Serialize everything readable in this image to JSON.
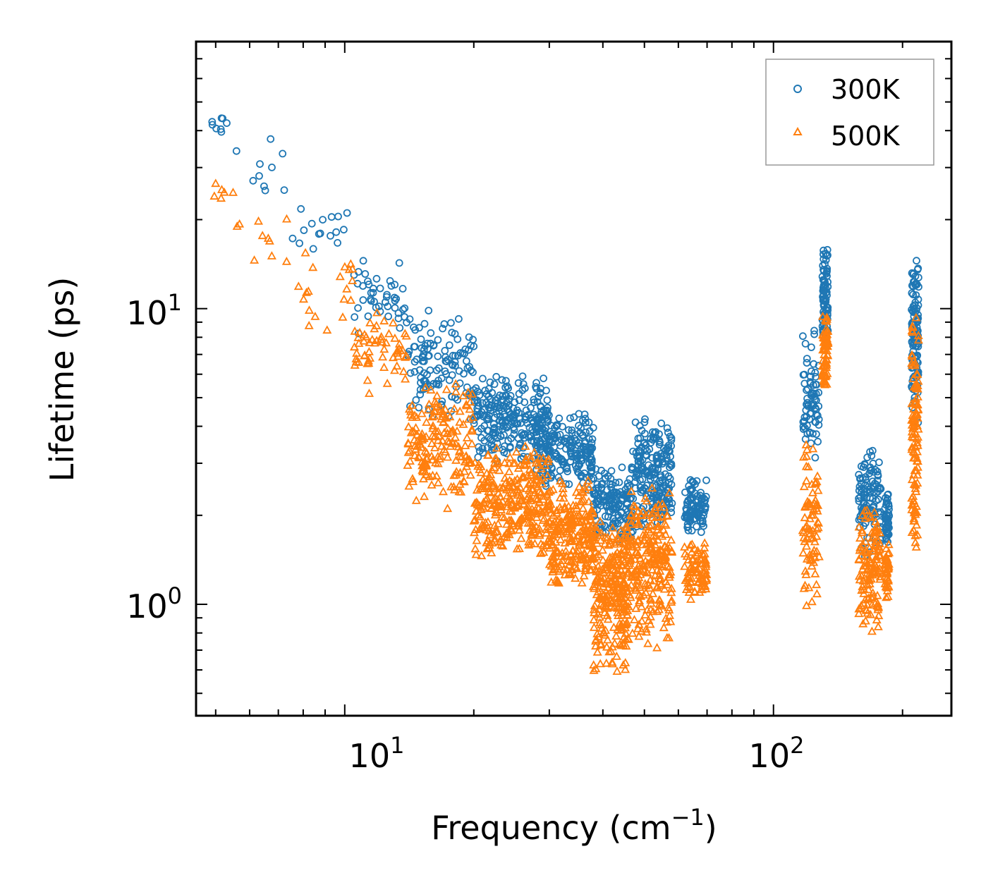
{
  "chart_data": {
    "type": "scatter",
    "title": "",
    "xlabel": "Frequency (cm",
    "xlabel_sup": "−1",
    "xlabel_suffix": ")",
    "ylabel": "Lifetime (ps)",
    "xscale": "log",
    "yscale": "log",
    "xlim": [
      4.5,
      260
    ],
    "ylim": [
      0.42,
      80
    ],
    "x_ticks": [
      {
        "value": 10,
        "base": "10",
        "exp": "1"
      },
      {
        "value": 100,
        "base": "10",
        "exp": "2"
      }
    ],
    "y_ticks": [
      {
        "value": 1,
        "base": "10",
        "exp": "0"
      },
      {
        "value": 10,
        "base": "10",
        "exp": "1"
      }
    ],
    "legend": {
      "position": "top-right",
      "entries": [
        "300K",
        "500K"
      ]
    },
    "colors": {
      "300K": "#1f77b4",
      "500K": "#ff7f0e"
    },
    "markers": {
      "300K": "circle",
      "500K": "triangle"
    },
    "series": [
      {
        "name": "300K",
        "clusters": [
          {
            "x": [
              4.9,
              5.5
            ],
            "y": [
              38,
              45
            ],
            "n": 8
          },
          {
            "x": [
              5.5,
              7.5
            ],
            "y": [
              22,
              40
            ],
            "n": 10
          },
          {
            "x": [
              7.5,
              10.5
            ],
            "y": [
              13,
              28
            ],
            "n": 16
          },
          {
            "x": [
              10.5,
              14
            ],
            "y": [
              8,
              15
            ],
            "n": 45
          },
          {
            "x": [
              14,
              20
            ],
            "y": [
              4,
              10
            ],
            "n": 120
          },
          {
            "x": [
              20,
              30
            ],
            "y": [
              3,
              6
            ],
            "n": 250
          },
          {
            "x": [
              28,
              38
            ],
            "y": [
              2.4,
              4.5
            ],
            "n": 200
          },
          {
            "x": [
              38,
              47
            ],
            "y": [
              1.6,
              3.0
            ],
            "n": 160
          },
          {
            "x": [
              47,
              58
            ],
            "y": [
              1.7,
              4.3
            ],
            "n": 200
          },
          {
            "x": [
              62,
              70
            ],
            "y": [
              1.7,
              2.7
            ],
            "n": 90
          },
          {
            "x": [
              117,
              128
            ],
            "y": [
              3.0,
              8.8
            ],
            "n": 70
          },
          {
            "x": [
              130,
              134
            ],
            "y": [
              7.5,
              16.5
            ],
            "n": 80
          },
          {
            "x": [
              158,
              178
            ],
            "y": [
              1.4,
              3.7
            ],
            "n": 110
          },
          {
            "x": [
              182,
              186
            ],
            "y": [
              1.6,
              2.5
            ],
            "n": 40
          },
          {
            "x": [
              210,
              218
            ],
            "y": [
              4.0,
              16.5
            ],
            "n": 110
          }
        ]
      },
      {
        "name": "500K",
        "clusters": [
          {
            "x": [
              4.9,
              5.5
            ],
            "y": [
              22,
              27
            ],
            "n": 6
          },
          {
            "x": [
              5.5,
              7.5
            ],
            "y": [
              14,
              22
            ],
            "n": 10
          },
          {
            "x": [
              7.5,
              10.5
            ],
            "y": [
              8,
              16
            ],
            "n": 20
          },
          {
            "x": [
              10.5,
              14
            ],
            "y": [
              5,
              10
            ],
            "n": 60
          },
          {
            "x": [
              14,
              20
            ],
            "y": [
              2.0,
              6.0
            ],
            "n": 180
          },
          {
            "x": [
              20,
              30
            ],
            "y": [
              1.4,
              3.5
            ],
            "n": 320
          },
          {
            "x": [
              30,
              38
            ],
            "y": [
              1.1,
              2.8
            ],
            "n": 240
          },
          {
            "x": [
              38,
              46
            ],
            "y": [
              0.58,
              2.0
            ],
            "n": 280
          },
          {
            "x": [
              46,
              58
            ],
            "y": [
              0.68,
              2.6
            ],
            "n": 240
          },
          {
            "x": [
              62,
              70
            ],
            "y": [
              1.0,
              1.7
            ],
            "n": 80
          },
          {
            "x": [
              117,
              128
            ],
            "y": [
              0.95,
              3.6
            ],
            "n": 80
          },
          {
            "x": [
              130,
              134
            ],
            "y": [
              5.0,
              10.0
            ],
            "n": 70
          },
          {
            "x": [
              158,
              178
            ],
            "y": [
              0.75,
              2.2
            ],
            "n": 130
          },
          {
            "x": [
              182,
              186
            ],
            "y": [
              1.0,
              1.6
            ],
            "n": 40
          },
          {
            "x": [
              210,
              218
            ],
            "y": [
              1.4,
              10.0
            ],
            "n": 110
          }
        ]
      }
    ]
  }
}
